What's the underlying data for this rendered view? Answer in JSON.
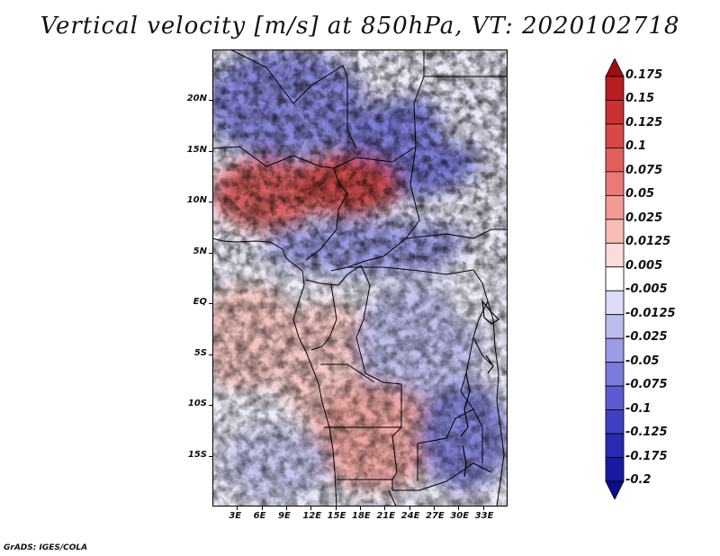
{
  "title": "Vertical velocity [m/s] at 850hPa, VT: 2020102718",
  "credit": "GrADS: IGES/COLA",
  "map": {
    "lon_range": [
      0,
      36
    ],
    "lat_range": [
      -20,
      25
    ],
    "lat_labels": [
      {
        "lat": 20,
        "text": "20N"
      },
      {
        "lat": 15,
        "text": "15N"
      },
      {
        "lat": 10,
        "text": "10N"
      },
      {
        "lat": 5,
        "text": "5N"
      },
      {
        "lat": 0,
        "text": "EQ"
      },
      {
        "lat": -5,
        "text": "5S"
      },
      {
        "lat": -10,
        "text": "10S"
      },
      {
        "lat": -15,
        "text": "15S"
      }
    ],
    "lon_labels": [
      {
        "lon": 3,
        "text": "3E"
      },
      {
        "lon": 6,
        "text": "6E"
      },
      {
        "lon": 9,
        "text": "9E"
      },
      {
        "lon": 12,
        "text": "12E"
      },
      {
        "lon": 15,
        "text": "15E"
      },
      {
        "lon": 18,
        "text": "18E"
      },
      {
        "lon": 21,
        "text": "21E"
      },
      {
        "lon": 24,
        "text": "24E"
      },
      {
        "lon": 27,
        "text": "27E"
      },
      {
        "lon": 30,
        "text": "30E"
      },
      {
        "lon": 33,
        "text": "33E"
      }
    ]
  },
  "colorbar": {
    "labels": [
      "0.175",
      "0.15",
      "0.125",
      "0.1",
      "0.075",
      "0.05",
      "0.025",
      "0.0125",
      "0.005",
      "-0.005",
      "-0.0125",
      "-0.025",
      "-0.05",
      "-0.075",
      "-0.1",
      "-0.125",
      "-0.175",
      "-0.2"
    ],
    "colors": [
      "#9e0e12",
      "#b81e22",
      "#cb3032",
      "#d94846",
      "#e35f5c",
      "#ea7a77",
      "#f19a96",
      "#f7bcb8",
      "#fbdcd9",
      "#ffffff",
      "#dcdcf6",
      "#bcbcef",
      "#9c9ce6",
      "#7b7bdc",
      "#5c5cd1",
      "#4040c3",
      "#2a2ab2",
      "#1a1aa0",
      "#0e0e8c"
    ]
  }
}
